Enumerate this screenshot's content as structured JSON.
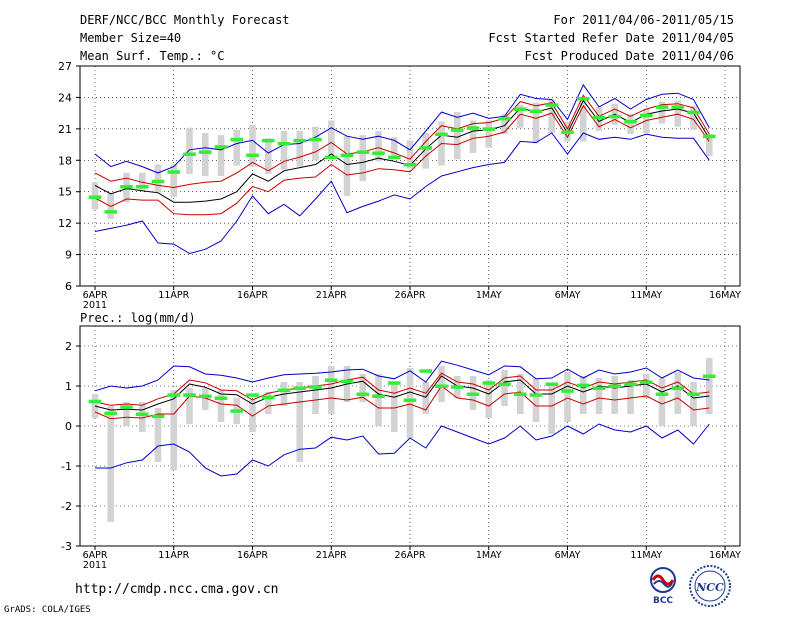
{
  "header": {
    "title": "DERF/NCC/BCC Monthly Forecast",
    "member_size": "Member Size=40",
    "variable_top": "Mean Surf. Temp.: °C",
    "for_period": "For 2011/04/06-2011/05/15",
    "fcst_started": "Fcst Started Refer Date 2011/04/05",
    "fcst_produced": "Fcst Produced Date 2011/04/06"
  },
  "footer": {
    "url": "http://cmdp.ncc.cma.gov.cn",
    "grads": "GrADS: COLA/IGES",
    "logo_left_text": "BCC",
    "logo_right_text": "NCC"
  },
  "colors": {
    "ensemble_mean": "#000000",
    "spread_lines": "#cc0000",
    "envelope_lines": "#0000cc",
    "climatology_bars": "#d3d3d3",
    "observation_marks": "#33ee33"
  },
  "chart_data": [
    {
      "type": "line",
      "title": "Mean Surf. Temp.: °C",
      "ylabel": "°C",
      "ylim": [
        6,
        27
      ],
      "yticks": [
        "6",
        "9",
        "12",
        "15",
        "18",
        "21",
        "24",
        "27"
      ],
      "ytick_values": [
        6,
        9,
        12,
        15,
        18,
        21,
        24,
        27
      ],
      "xticks": [
        "6APR",
        "11APR",
        "16APR",
        "21APR",
        "26APR",
        "1MAY",
        "6MAY",
        "11MAY",
        "16MAY"
      ],
      "xtick_values": [
        0,
        5,
        10,
        15,
        20,
        25,
        30,
        35,
        40
      ],
      "x_year_label": "2011",
      "grid": true,
      "x": [
        0,
        1,
        2,
        3,
        4,
        5,
        6,
        7,
        8,
        9,
        10,
        11,
        12,
        13,
        14,
        15,
        16,
        17,
        18,
        19,
        20,
        21,
        22,
        23,
        24,
        25,
        26,
        27,
        28,
        29,
        30,
        31,
        32,
        33,
        34,
        35,
        36,
        37,
        38,
        39
      ],
      "series": [
        {
          "name": "ensemble mean",
          "color": "#000000",
          "values": [
            15.6,
            14.8,
            15.3,
            15.1,
            14.9,
            14.0,
            14.0,
            14.1,
            14.3,
            15.0,
            16.7,
            16.0,
            17.0,
            17.3,
            17.6,
            18.6,
            17.6,
            17.8,
            18.2,
            17.9,
            17.5,
            19.1,
            20.4,
            20.2,
            20.8,
            20.9,
            21.3,
            23.0,
            22.6,
            23.0,
            20.6,
            23.7,
            21.7,
            22.4,
            21.6,
            22.4,
            22.7,
            22.9,
            22.5,
            20.1
          ]
        },
        {
          "name": "spread upper",
          "color": "#cc0000",
          "values": [
            16.8,
            16.0,
            16.3,
            15.9,
            15.6,
            15.4,
            15.7,
            15.9,
            16.0,
            16.8,
            17.8,
            17.0,
            17.9,
            18.3,
            18.8,
            19.7,
            18.6,
            18.8,
            19.2,
            18.7,
            18.1,
            19.8,
            21.3,
            21.0,
            21.5,
            21.6,
            22.0,
            23.6,
            23.2,
            23.5,
            21.0,
            24.2,
            22.2,
            22.9,
            22.2,
            22.9,
            23.3,
            23.4,
            23.0,
            20.5
          ]
        },
        {
          "name": "spread lower",
          "color": "#cc0000",
          "values": [
            14.4,
            13.6,
            14.3,
            14.2,
            14.2,
            12.9,
            12.8,
            12.8,
            12.9,
            13.9,
            15.5,
            15.0,
            16.1,
            16.3,
            16.4,
            17.6,
            16.6,
            16.8,
            17.2,
            17.1,
            16.9,
            18.4,
            19.6,
            19.5,
            20.1,
            20.3,
            20.7,
            22.4,
            22.0,
            22.5,
            20.2,
            23.2,
            21.2,
            21.9,
            21.1,
            21.8,
            22.1,
            22.4,
            21.9,
            19.8
          ]
        },
        {
          "name": "envelope upper",
          "color": "#0000cc",
          "values": [
            18.6,
            17.4,
            17.9,
            17.4,
            16.8,
            17.4,
            19.0,
            19.2,
            19.0,
            19.6,
            19.9,
            18.7,
            19.5,
            19.6,
            20.2,
            21.1,
            20.3,
            20.0,
            20.3,
            19.9,
            19.0,
            20.8,
            22.6,
            22.1,
            22.5,
            22.0,
            22.2,
            24.3,
            23.9,
            23.8,
            21.9,
            25.2,
            23.1,
            23.9,
            22.9,
            23.8,
            24.3,
            24.4,
            23.8,
            21.1
          ]
        },
        {
          "name": "envelope lower",
          "color": "#0000cc",
          "values": [
            11.2,
            11.5,
            11.8,
            12.2,
            10.1,
            10.0,
            9.1,
            9.5,
            10.3,
            12.2,
            14.6,
            12.9,
            13.8,
            12.7,
            14.3,
            16.0,
            13.0,
            13.6,
            14.1,
            14.7,
            14.3,
            15.5,
            16.5,
            16.9,
            17.3,
            17.6,
            17.8,
            19.8,
            19.7,
            20.6,
            18.6,
            20.6,
            20.0,
            20.2,
            20.0,
            20.5,
            20.2,
            20.1,
            20.1,
            18.0
          ]
        }
      ],
      "bars": {
        "name": "climatology range",
        "color": "#d3d3d3",
        "low": [
          13.3,
          12.4,
          14.0,
          15.2,
          14.9,
          14.5,
          16.7,
          16.5,
          16.5,
          17.5,
          17.4,
          16.7,
          17.1,
          17.4,
          18.0,
          18.4,
          14.6,
          16.0,
          17.9,
          18.4,
          17.2,
          17.2,
          17.5,
          18.1,
          18.7,
          19.2,
          20.5,
          21.1,
          19.6,
          20.6,
          19.8,
          19.8,
          20.8,
          21.4,
          20.5,
          20.6,
          21.5,
          21.2,
          20.9,
          18.4
        ],
        "high": [
          15.9,
          14.9,
          16.8,
          16.8,
          17.6,
          17.6,
          21.1,
          20.6,
          20.4,
          20.9,
          21.4,
          20.1,
          20.8,
          20.8,
          21.2,
          21.8,
          20.3,
          20.4,
          20.8,
          20.2,
          19.9,
          20.6,
          21.7,
          22.6,
          21.8,
          21.8,
          22.4,
          23.3,
          23.5,
          23.8,
          21.7,
          23.7,
          23.1,
          23.4,
          22.4,
          22.9,
          23.6,
          23.7,
          23.2,
          20.5
        ]
      },
      "markers": {
        "name": "observation",
        "color": "#33ee33",
        "values": [
          14.5,
          13.1,
          15.5,
          15.5,
          16.0,
          16.9,
          18.6,
          18.8,
          19.3,
          20.0,
          18.5,
          19.9,
          19.6,
          19.9,
          20.0,
          18.3,
          18.5,
          18.8,
          18.7,
          18.3,
          17.6,
          19.2,
          20.5,
          20.9,
          21.1,
          21.0,
          22.0,
          22.9,
          22.7,
          23.3,
          20.7,
          23.9,
          22.1,
          22.2,
          21.7,
          22.3,
          23.1,
          23.1,
          22.6,
          20.3
        ]
      }
    },
    {
      "type": "line",
      "title": "Prec.: log(mm/d)",
      "ylabel": "log(mm/d)",
      "ylim": [
        -3,
        2.5
      ],
      "yticks": [
        "-3",
        "-2",
        "-1",
        "0",
        "1",
        "2"
      ],
      "ytick_values": [
        -3,
        -2,
        -1,
        0,
        1,
        2
      ],
      "xticks": [
        "6APR",
        "11APR",
        "16APR",
        "21APR",
        "26APR",
        "1MAY",
        "6MAY",
        "11MAY",
        "16MAY"
      ],
      "xtick_values": [
        0,
        5,
        10,
        15,
        20,
        25,
        30,
        35,
        40
      ],
      "x_year_label": "2011",
      "grid": true,
      "x": [
        0,
        1,
        2,
        3,
        4,
        5,
        6,
        7,
        8,
        9,
        10,
        11,
        12,
        13,
        14,
        15,
        16,
        17,
        18,
        19,
        20,
        21,
        22,
        23,
        24,
        25,
        26,
        27,
        28,
        29,
        30,
        31,
        32,
        33,
        34,
        35,
        36,
        37,
        38,
        39
      ],
      "series": [
        {
          "name": "ensemble mean",
          "color": "#000000",
          "values": [
            0.5,
            0.4,
            0.42,
            0.4,
            0.55,
            0.68,
            1.05,
            0.97,
            0.8,
            0.78,
            0.55,
            0.72,
            0.8,
            0.85,
            0.9,
            0.95,
            1.05,
            1.12,
            0.8,
            0.72,
            0.85,
            0.72,
            1.25,
            1.0,
            0.95,
            0.8,
            1.1,
            1.15,
            0.8,
            0.8,
            1.0,
            0.85,
            1.0,
            0.95,
            1.0,
            1.05,
            0.85,
            1.0,
            0.7,
            0.75
          ]
        },
        {
          "name": "spread upper",
          "color": "#cc0000",
          "values": [
            0.6,
            0.52,
            0.55,
            0.52,
            0.68,
            0.8,
            1.15,
            1.08,
            0.9,
            0.88,
            0.65,
            0.82,
            0.9,
            0.95,
            1.0,
            1.05,
            1.15,
            1.22,
            0.9,
            0.82,
            0.95,
            0.82,
            1.32,
            1.1,
            1.05,
            0.9,
            1.2,
            1.25,
            0.9,
            0.9,
            1.1,
            0.95,
            1.1,
            1.05,
            1.1,
            1.15,
            0.95,
            1.1,
            0.8,
            0.85
          ]
        },
        {
          "name": "spread lower",
          "color": "#cc0000",
          "values": [
            0.35,
            0.18,
            0.22,
            0.2,
            0.3,
            0.3,
            0.75,
            0.7,
            0.55,
            0.52,
            0.25,
            0.5,
            0.55,
            0.6,
            0.65,
            0.7,
            0.65,
            0.72,
            0.45,
            0.45,
            0.55,
            0.4,
            1.0,
            0.7,
            0.65,
            0.5,
            0.8,
            0.85,
            0.5,
            0.5,
            0.7,
            0.55,
            0.7,
            0.65,
            0.7,
            0.75,
            0.55,
            0.7,
            0.4,
            0.45
          ]
        },
        {
          "name": "envelope upper",
          "color": "#0000cc",
          "values": [
            0.88,
            1.0,
            0.95,
            1.0,
            1.15,
            1.5,
            1.48,
            1.3,
            1.27,
            1.2,
            1.1,
            1.2,
            1.28,
            1.3,
            1.32,
            1.35,
            1.4,
            1.42,
            1.25,
            1.18,
            1.38,
            1.1,
            1.62,
            1.52,
            1.4,
            1.28,
            1.5,
            1.48,
            1.18,
            1.2,
            1.42,
            1.2,
            1.4,
            1.3,
            1.35,
            1.45,
            1.2,
            1.4,
            1.2,
            1.15
          ]
        },
        {
          "name": "envelope lower",
          "color": "#0000cc",
          "values": [
            -1.05,
            -1.05,
            -0.92,
            -0.85,
            -0.5,
            -0.45,
            -0.65,
            -1.05,
            -1.25,
            -1.2,
            -0.85,
            -1.0,
            -0.72,
            -0.58,
            -0.55,
            -0.28,
            -0.35,
            -0.25,
            -0.7,
            -0.68,
            -0.3,
            -0.55,
            0.0,
            -0.15,
            -0.3,
            -0.45,
            -0.3,
            0.0,
            -0.35,
            -0.25,
            0.0,
            -0.2,
            0.05,
            -0.1,
            -0.15,
            0.0,
            -0.3,
            -0.1,
            -0.45,
            0.05
          ]
        }
      ],
      "bars": {
        "name": "climatology range",
        "color": "#d3d3d3",
        "low": [
          0.2,
          -2.4,
          0.0,
          -0.15,
          -0.9,
          -1.1,
          0.05,
          0.4,
          0.1,
          0.05,
          -0.15,
          0.3,
          0.5,
          -0.9,
          0.3,
          0.3,
          0.6,
          0.6,
          0.0,
          -0.15,
          -0.3,
          0.3,
          0.6,
          0.7,
          0.4,
          0.2,
          0.5,
          0.3,
          0.1,
          -0.2,
          0.1,
          0.3,
          0.3,
          0.3,
          0.3,
          0.7,
          0.0,
          0.3,
          0.0,
          0.3
        ],
        "high": [
          0.8,
          0.5,
          0.6,
          0.6,
          0.45,
          0.9,
          0.95,
          0.95,
          0.9,
          0.7,
          0.65,
          0.85,
          1.1,
          1.1,
          1.25,
          1.5,
          1.5,
          1.3,
          1.3,
          1.05,
          1.45,
          1.1,
          1.5,
          1.25,
          1.25,
          1.15,
          1.4,
          1.3,
          1.2,
          1.05,
          1.35,
          1.25,
          1.2,
          1.25,
          1.15,
          1.3,
          1.2,
          1.35,
          1.1,
          1.7
        ]
      },
      "markers": {
        "name": "observation",
        "color": "#33ee33",
        "values": [
          0.62,
          0.32,
          0.48,
          0.3,
          0.25,
          0.78,
          0.78,
          0.75,
          0.7,
          0.38,
          0.78,
          0.72,
          0.9,
          0.95,
          0.98,
          1.15,
          1.12,
          0.8,
          0.75,
          1.08,
          0.65,
          1.38,
          1.0,
          0.98,
          0.8,
          1.08,
          1.05,
          0.8,
          0.78,
          1.05,
          0.88,
          1.02,
          0.95,
          1.0,
          1.05,
          1.1,
          0.8,
          0.95,
          0.8,
          1.25
        ]
      }
    }
  ]
}
